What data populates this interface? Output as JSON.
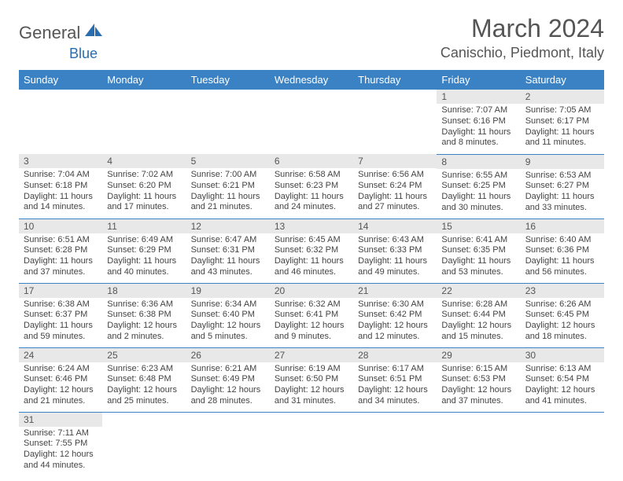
{
  "brand": {
    "part1": "General",
    "part2": "Blue"
  },
  "header": {
    "title": "March 2024",
    "location": "Canischio, Piedmont, Italy"
  },
  "colors": {
    "header_bg": "#3b82c4",
    "header_text": "#ffffff",
    "daynum_bg": "#e8e8e8",
    "border": "#3b82c4",
    "logo_blue": "#2a6cb0"
  },
  "weekdays": [
    "Sunday",
    "Monday",
    "Tuesday",
    "Wednesday",
    "Thursday",
    "Friday",
    "Saturday"
  ],
  "weeks": [
    [
      null,
      null,
      null,
      null,
      null,
      {
        "n": "1",
        "sunrise": "Sunrise: 7:07 AM",
        "sunset": "Sunset: 6:16 PM",
        "daylight": "Daylight: 11 hours and 8 minutes."
      },
      {
        "n": "2",
        "sunrise": "Sunrise: 7:05 AM",
        "sunset": "Sunset: 6:17 PM",
        "daylight": "Daylight: 11 hours and 11 minutes."
      }
    ],
    [
      {
        "n": "3",
        "sunrise": "Sunrise: 7:04 AM",
        "sunset": "Sunset: 6:18 PM",
        "daylight": "Daylight: 11 hours and 14 minutes."
      },
      {
        "n": "4",
        "sunrise": "Sunrise: 7:02 AM",
        "sunset": "Sunset: 6:20 PM",
        "daylight": "Daylight: 11 hours and 17 minutes."
      },
      {
        "n": "5",
        "sunrise": "Sunrise: 7:00 AM",
        "sunset": "Sunset: 6:21 PM",
        "daylight": "Daylight: 11 hours and 21 minutes."
      },
      {
        "n": "6",
        "sunrise": "Sunrise: 6:58 AM",
        "sunset": "Sunset: 6:23 PM",
        "daylight": "Daylight: 11 hours and 24 minutes."
      },
      {
        "n": "7",
        "sunrise": "Sunrise: 6:56 AM",
        "sunset": "Sunset: 6:24 PM",
        "daylight": "Daylight: 11 hours and 27 minutes."
      },
      {
        "n": "8",
        "sunrise": "Sunrise: 6:55 AM",
        "sunset": "Sunset: 6:25 PM",
        "daylight": "Daylight: 11 hours and 30 minutes."
      },
      {
        "n": "9",
        "sunrise": "Sunrise: 6:53 AM",
        "sunset": "Sunset: 6:27 PM",
        "daylight": "Daylight: 11 hours and 33 minutes."
      }
    ],
    [
      {
        "n": "10",
        "sunrise": "Sunrise: 6:51 AM",
        "sunset": "Sunset: 6:28 PM",
        "daylight": "Daylight: 11 hours and 37 minutes."
      },
      {
        "n": "11",
        "sunrise": "Sunrise: 6:49 AM",
        "sunset": "Sunset: 6:29 PM",
        "daylight": "Daylight: 11 hours and 40 minutes."
      },
      {
        "n": "12",
        "sunrise": "Sunrise: 6:47 AM",
        "sunset": "Sunset: 6:31 PM",
        "daylight": "Daylight: 11 hours and 43 minutes."
      },
      {
        "n": "13",
        "sunrise": "Sunrise: 6:45 AM",
        "sunset": "Sunset: 6:32 PM",
        "daylight": "Daylight: 11 hours and 46 minutes."
      },
      {
        "n": "14",
        "sunrise": "Sunrise: 6:43 AM",
        "sunset": "Sunset: 6:33 PM",
        "daylight": "Daylight: 11 hours and 49 minutes."
      },
      {
        "n": "15",
        "sunrise": "Sunrise: 6:41 AM",
        "sunset": "Sunset: 6:35 PM",
        "daylight": "Daylight: 11 hours and 53 minutes."
      },
      {
        "n": "16",
        "sunrise": "Sunrise: 6:40 AM",
        "sunset": "Sunset: 6:36 PM",
        "daylight": "Daylight: 11 hours and 56 minutes."
      }
    ],
    [
      {
        "n": "17",
        "sunrise": "Sunrise: 6:38 AM",
        "sunset": "Sunset: 6:37 PM",
        "daylight": "Daylight: 11 hours and 59 minutes."
      },
      {
        "n": "18",
        "sunrise": "Sunrise: 6:36 AM",
        "sunset": "Sunset: 6:38 PM",
        "daylight": "Daylight: 12 hours and 2 minutes."
      },
      {
        "n": "19",
        "sunrise": "Sunrise: 6:34 AM",
        "sunset": "Sunset: 6:40 PM",
        "daylight": "Daylight: 12 hours and 5 minutes."
      },
      {
        "n": "20",
        "sunrise": "Sunrise: 6:32 AM",
        "sunset": "Sunset: 6:41 PM",
        "daylight": "Daylight: 12 hours and 9 minutes."
      },
      {
        "n": "21",
        "sunrise": "Sunrise: 6:30 AM",
        "sunset": "Sunset: 6:42 PM",
        "daylight": "Daylight: 12 hours and 12 minutes."
      },
      {
        "n": "22",
        "sunrise": "Sunrise: 6:28 AM",
        "sunset": "Sunset: 6:44 PM",
        "daylight": "Daylight: 12 hours and 15 minutes."
      },
      {
        "n": "23",
        "sunrise": "Sunrise: 6:26 AM",
        "sunset": "Sunset: 6:45 PM",
        "daylight": "Daylight: 12 hours and 18 minutes."
      }
    ],
    [
      {
        "n": "24",
        "sunrise": "Sunrise: 6:24 AM",
        "sunset": "Sunset: 6:46 PM",
        "daylight": "Daylight: 12 hours and 21 minutes."
      },
      {
        "n": "25",
        "sunrise": "Sunrise: 6:23 AM",
        "sunset": "Sunset: 6:48 PM",
        "daylight": "Daylight: 12 hours and 25 minutes."
      },
      {
        "n": "26",
        "sunrise": "Sunrise: 6:21 AM",
        "sunset": "Sunset: 6:49 PM",
        "daylight": "Daylight: 12 hours and 28 minutes."
      },
      {
        "n": "27",
        "sunrise": "Sunrise: 6:19 AM",
        "sunset": "Sunset: 6:50 PM",
        "daylight": "Daylight: 12 hours and 31 minutes."
      },
      {
        "n": "28",
        "sunrise": "Sunrise: 6:17 AM",
        "sunset": "Sunset: 6:51 PM",
        "daylight": "Daylight: 12 hours and 34 minutes."
      },
      {
        "n": "29",
        "sunrise": "Sunrise: 6:15 AM",
        "sunset": "Sunset: 6:53 PM",
        "daylight": "Daylight: 12 hours and 37 minutes."
      },
      {
        "n": "30",
        "sunrise": "Sunrise: 6:13 AM",
        "sunset": "Sunset: 6:54 PM",
        "daylight": "Daylight: 12 hours and 41 minutes."
      }
    ],
    [
      {
        "n": "31",
        "sunrise": "Sunrise: 7:11 AM",
        "sunset": "Sunset: 7:55 PM",
        "daylight": "Daylight: 12 hours and 44 minutes."
      },
      null,
      null,
      null,
      null,
      null,
      null
    ]
  ]
}
